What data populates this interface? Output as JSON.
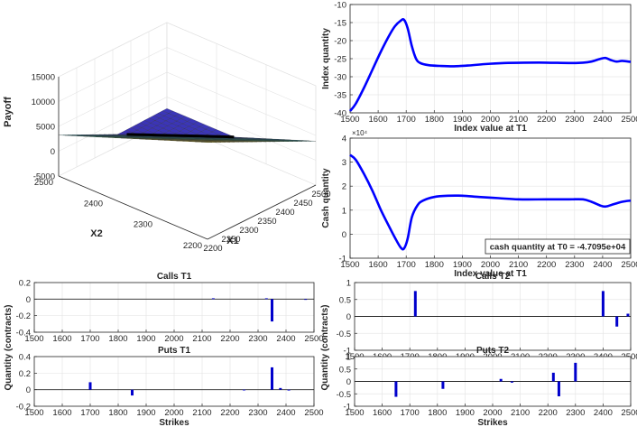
{
  "chart_data": [
    {
      "id": "surface",
      "type": "surface",
      "zlabel": "Payoff",
      "xlabel": "X1",
      "ylabel": "X2",
      "x_ticks": [
        "2200",
        "2250",
        "2300",
        "2350",
        "2400",
        "2450",
        "2500"
      ],
      "y_ticks": [
        "2200",
        "2300",
        "2400",
        "2500"
      ],
      "z_ticks": [
        "-5000",
        "0",
        "5000",
        "10000",
        "15000"
      ],
      "xlim": [
        2200,
        2500
      ],
      "ylim": [
        2200,
        2500
      ],
      "zlim": [
        -5000,
        15000
      ],
      "colormap": [
        "#3e26a8",
        "#2f6ef0",
        "#1ab3c6",
        "#44c08c",
        "#b5be3a",
        "#f9d52b",
        "#f9fb15"
      ],
      "grid": true
    },
    {
      "id": "index",
      "type": "line",
      "xlabel": "Index value at T1",
      "ylabel": "Index quantity",
      "xlim": [
        1500,
        2500
      ],
      "ylim": [
        -40,
        -10
      ],
      "x_ticks": [
        "1500",
        "1600",
        "1700",
        "1800",
        "1900",
        "2000",
        "2100",
        "2200",
        "2300",
        "2400",
        "2500"
      ],
      "y_ticks": [
        "-10",
        "-15",
        "-20",
        "-25",
        "-30",
        "-35",
        "-40"
      ],
      "color": "#0000ff",
      "grid": true,
      "points": [
        [
          1500,
          -39.5
        ],
        [
          1520,
          -37.5
        ],
        [
          1550,
          -33
        ],
        [
          1580,
          -28
        ],
        [
          1610,
          -23
        ],
        [
          1640,
          -18.5
        ],
        [
          1660,
          -16
        ],
        [
          1680,
          -14.5
        ],
        [
          1692,
          -14.2
        ],
        [
          1705,
          -16.5
        ],
        [
          1720,
          -21.5
        ],
        [
          1735,
          -25
        ],
        [
          1750,
          -26.2
        ],
        [
          1780,
          -26.8
        ],
        [
          1820,
          -27
        ],
        [
          1870,
          -27.1
        ],
        [
          1920,
          -26.9
        ],
        [
          1980,
          -26.5
        ],
        [
          2050,
          -26.2
        ],
        [
          2120,
          -26.1
        ],
        [
          2200,
          -26.1
        ],
        [
          2280,
          -26.2
        ],
        [
          2330,
          -26.1
        ],
        [
          2360,
          -25.8
        ],
        [
          2390,
          -25.1
        ],
        [
          2410,
          -24.8
        ],
        [
          2430,
          -25.4
        ],
        [
          2450,
          -25.8
        ],
        [
          2470,
          -25.6
        ],
        [
          2500,
          -25.9
        ]
      ]
    },
    {
      "id": "cash",
      "type": "line",
      "xlabel": "Index value at T1",
      "ylabel": "Cash quantity",
      "exponent_label": "×10⁴",
      "annotation": "cash quantity at T0 = -4.7095e+04",
      "xlim": [
        1500,
        2500
      ],
      "ylim": [
        -1,
        4
      ],
      "x_ticks": [
        "1500",
        "1600",
        "1700",
        "1800",
        "1900",
        "2000",
        "2100",
        "2200",
        "2300",
        "2400",
        "2500"
      ],
      "y_ticks": [
        "4",
        "3",
        "2",
        "1",
        "0",
        "-1"
      ],
      "color": "#0000ff",
      "grid": true,
      "points": [
        [
          1500,
          3.3
        ],
        [
          1520,
          3.1
        ],
        [
          1550,
          2.5
        ],
        [
          1580,
          1.8
        ],
        [
          1610,
          1.0
        ],
        [
          1640,
          0.3
        ],
        [
          1660,
          -0.15
        ],
        [
          1680,
          -0.55
        ],
        [
          1692,
          -0.6
        ],
        [
          1705,
          -0.2
        ],
        [
          1720,
          0.7
        ],
        [
          1740,
          1.2
        ],
        [
          1760,
          1.4
        ],
        [
          1800,
          1.55
        ],
        [
          1850,
          1.6
        ],
        [
          1900,
          1.6
        ],
        [
          1960,
          1.55
        ],
        [
          2030,
          1.5
        ],
        [
          2100,
          1.45
        ],
        [
          2200,
          1.45
        ],
        [
          2280,
          1.45
        ],
        [
          2330,
          1.45
        ],
        [
          2360,
          1.35
        ],
        [
          2390,
          1.2
        ],
        [
          2410,
          1.15
        ],
        [
          2440,
          1.25
        ],
        [
          2470,
          1.35
        ],
        [
          2500,
          1.4
        ]
      ]
    },
    {
      "id": "calls_t1",
      "type": "bar",
      "title": "Calls T1",
      "xlim": [
        1500,
        2500
      ],
      "ylim": [
        -0.4,
        0.2
      ],
      "x_ticks": [
        "1500",
        "1600",
        "1700",
        "1800",
        "1900",
        "2000",
        "2100",
        "2200",
        "2300",
        "2400",
        "2500"
      ],
      "y_ticks": [
        "0.2",
        "0",
        "-0.2",
        "-0.4"
      ],
      "color": "#0000cc",
      "grid": true,
      "bars": [
        [
          2140,
          0.01
        ],
        [
          2330,
          0.01
        ],
        [
          2350,
          -0.27
        ],
        [
          2470,
          -0.005
        ]
      ]
    },
    {
      "id": "calls_t2",
      "type": "bar",
      "title": "Calls T2",
      "xlim": [
        1500,
        2500
      ],
      "ylim": [
        -1,
        1
      ],
      "x_ticks": [
        "1500",
        "1600",
        "1700",
        "1800",
        "1900",
        "2000",
        "2100",
        "2200",
        "2300",
        "2400",
        "2500"
      ],
      "y_ticks": [
        "1",
        "0.5",
        "0",
        "-0.5",
        "-1"
      ],
      "color": "#0000cc",
      "grid": true,
      "bars": [
        [
          1720,
          0.75
        ],
        [
          2400,
          0.75
        ],
        [
          2450,
          -0.3
        ],
        [
          2490,
          0.08
        ]
      ]
    },
    {
      "id": "puts_t1",
      "type": "bar",
      "title": "Puts T1",
      "xlabel": "Strikes",
      "xlim": [
        1500,
        2500
      ],
      "ylim": [
        -0.2,
        0.4
      ],
      "x_ticks": [
        "1500",
        "1600",
        "1700",
        "1800",
        "1900",
        "2000",
        "2100",
        "2200",
        "2300",
        "2400",
        "2500"
      ],
      "y_ticks": [
        "0.4",
        "0.2",
        "0",
        "-0.2"
      ],
      "color": "#0000cc",
      "grid": true,
      "bars": [
        [
          1700,
          0.09
        ],
        [
          1850,
          -0.07
        ],
        [
          2250,
          -0.005
        ],
        [
          2350,
          0.27
        ],
        [
          2380,
          0.02
        ],
        [
          2410,
          -0.01
        ]
      ]
    },
    {
      "id": "puts_t2",
      "type": "bar",
      "title": "Puts T2",
      "xlabel": "Strikes",
      "xlim": [
        1500,
        2500
      ],
      "ylim": [
        -1,
        1
      ],
      "x_ticks": [
        "1500",
        "1600",
        "1700",
        "1800",
        "1900",
        "2000",
        "2100",
        "2200",
        "2300",
        "2400",
        "2500"
      ],
      "y_ticks": [
        "1",
        "0.5",
        "0",
        "-0.5",
        "-1"
      ],
      "color": "#0000cc",
      "grid": true,
      "bars": [
        [
          1650,
          -0.62
        ],
        [
          1820,
          -0.3
        ],
        [
          2030,
          0.1
        ],
        [
          2070,
          -0.05
        ],
        [
          2220,
          0.35
        ],
        [
          2240,
          -0.6
        ],
        [
          2300,
          0.75
        ]
      ]
    }
  ],
  "shared_ylabel": "Quantity (contracts)"
}
